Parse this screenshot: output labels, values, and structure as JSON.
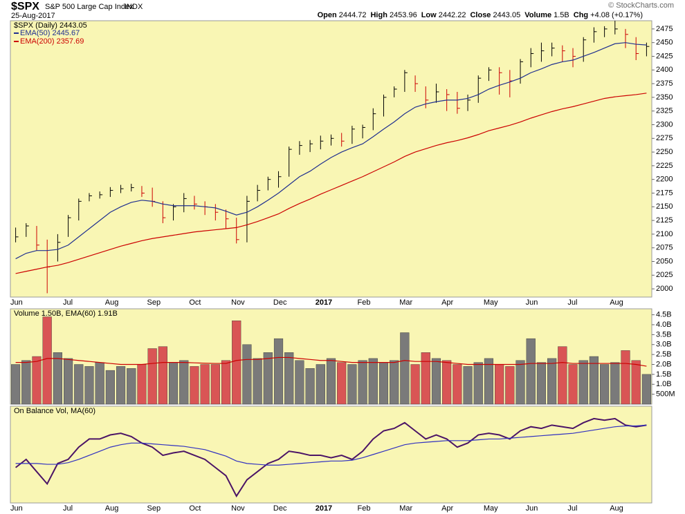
{
  "header": {
    "symbol": "$SPX",
    "name": "S&P 500 Large Cap Index",
    "exchange": "INDX",
    "date": "25-Aug-2017",
    "copyright": "© StockCharts.com",
    "quote": [
      {
        "label": "Open",
        "value": 2444.72
      },
      {
        "label": "High",
        "value": 2453.96
      },
      {
        "label": "Low",
        "value": 2442.22
      },
      {
        "label": "Close",
        "value": 2443.05
      },
      {
        "label": "Volume",
        "value": "1.5B"
      },
      {
        "label": "Chg",
        "value": "+4.08 (+0.17%)"
      }
    ]
  },
  "chart_data": [
    {
      "type": "ohlc",
      "categories": [
        "Jun",
        null,
        null,
        null,
        null,
        "Jul",
        null,
        null,
        null,
        "Aug",
        null,
        null,
        null,
        "Sep",
        null,
        null,
        null,
        "Oct",
        null,
        null,
        null,
        "Nov",
        null,
        null,
        null,
        "Dec",
        null,
        null,
        null,
        "2017",
        null,
        null,
        null,
        "Feb",
        null,
        null,
        null,
        "Mar",
        null,
        null,
        null,
        "Apr",
        null,
        null,
        null,
        "May",
        null,
        null,
        null,
        "Jun",
        null,
        null,
        null,
        "Jul",
        null,
        null,
        null,
        "Aug",
        null,
        null,
        null
      ],
      "ylim": [
        1985,
        2490
      ],
      "yticks": [
        2000,
        2025,
        2050,
        2075,
        2100,
        2125,
        2150,
        2175,
        2200,
        2225,
        2250,
        2275,
        2300,
        2325,
        2350,
        2375,
        2400,
        2425,
        2450,
        2475
      ],
      "up_color": "#000000",
      "down_color": "#cc0000",
      "price": {
        "name": "$SPX (Daily) 2443.05",
        "close": [
          2095,
          2115,
          2080,
          2040,
          2085,
          2130,
          2160,
          2170,
          2172,
          2180,
          2183,
          2185,
          2175,
          2160,
          2130,
          2150,
          2165,
          2155,
          2150,
          2140,
          2128,
          2090,
          2160,
          2180,
          2200,
          2205,
          2255,
          2262,
          2265,
          2270,
          2275,
          2270,
          2292,
          2295,
          2320,
          2350,
          2365,
          2395,
          2375,
          2345,
          2360,
          2355,
          2330,
          2345,
          2385,
          2400,
          2395,
          2380,
          2415,
          2430,
          2435,
          2440,
          2435,
          2425,
          2455,
          2470,
          2475,
          2475,
          2465,
          2430,
          2443
        ],
        "high": [
          2112,
          2120,
          2115,
          2090,
          2100,
          2135,
          2165,
          2175,
          2178,
          2186,
          2190,
          2192,
          2188,
          2185,
          2160,
          2155,
          2175,
          2170,
          2160,
          2155,
          2145,
          2130,
          2170,
          2190,
          2205,
          2215,
          2260,
          2270,
          2272,
          2280,
          2282,
          2285,
          2298,
          2300,
          2330,
          2355,
          2370,
          2400,
          2390,
          2370,
          2375,
          2365,
          2360,
          2355,
          2390,
          2405,
          2405,
          2400,
          2420,
          2440,
          2450,
          2450,
          2445,
          2440,
          2460,
          2478,
          2480,
          2490,
          2475,
          2460,
          2450
        ],
        "low": [
          2085,
          2095,
          2070,
          1992,
          2050,
          2095,
          2125,
          2160,
          2165,
          2168,
          2175,
          2178,
          2168,
          2150,
          2120,
          2125,
          2140,
          2145,
          2135,
          2125,
          2110,
          2083,
          2085,
          2160,
          2180,
          2185,
          2205,
          2245,
          2250,
          2255,
          2262,
          2260,
          2265,
          2275,
          2290,
          2315,
          2350,
          2360,
          2360,
          2330,
          2340,
          2325,
          2320,
          2325,
          2340,
          2380,
          2355,
          2350,
          2375,
          2405,
          2415,
          2425,
          2415,
          2405,
          2415,
          2450,
          2460,
          2465,
          2440,
          2418,
          2425
        ]
      },
      "series": [
        {
          "name": "EMA(50) 2445.67",
          "color": "#1f2f8f",
          "values": [
            2055,
            2065,
            2070,
            2070,
            2072,
            2080,
            2095,
            2110,
            2125,
            2140,
            2150,
            2158,
            2162,
            2160,
            2155,
            2152,
            2152,
            2152,
            2150,
            2148,
            2142,
            2135,
            2140,
            2150,
            2162,
            2175,
            2190,
            2205,
            2215,
            2228,
            2240,
            2250,
            2258,
            2265,
            2278,
            2292,
            2305,
            2320,
            2332,
            2338,
            2342,
            2345,
            2345,
            2348,
            2355,
            2365,
            2372,
            2378,
            2385,
            2395,
            2402,
            2410,
            2415,
            2418,
            2425,
            2432,
            2440,
            2448,
            2450,
            2447,
            2445.67
          ]
        },
        {
          "name": "EMA(200) 2357.69",
          "color": "#cc0000",
          "values": [
            2028,
            2032,
            2036,
            2040,
            2043,
            2048,
            2054,
            2060,
            2066,
            2072,
            2078,
            2083,
            2088,
            2092,
            2095,
            2098,
            2101,
            2104,
            2106,
            2108,
            2110,
            2112,
            2117,
            2123,
            2130,
            2137,
            2147,
            2156,
            2164,
            2173,
            2181,
            2189,
            2197,
            2205,
            2214,
            2223,
            2232,
            2242,
            2250,
            2256,
            2262,
            2267,
            2271,
            2276,
            2282,
            2289,
            2294,
            2299,
            2305,
            2312,
            2318,
            2324,
            2329,
            2333,
            2338,
            2343,
            2348,
            2351,
            2353,
            2355,
            2357.69
          ]
        }
      ]
    },
    {
      "type": "volume",
      "title": "Volume 1.50B, EMA(60) 1.91B",
      "ylim": [
        0,
        4.8
      ],
      "yticks": [
        {
          "value": 0.5,
          "label": "500M"
        },
        {
          "value": 1,
          "label": "1.0B"
        },
        {
          "value": 1.5,
          "label": "1.5B"
        },
        {
          "value": 2,
          "label": "2.0B"
        },
        {
          "value": 2.5,
          "label": "2.5B"
        },
        {
          "value": 3,
          "label": "3.0B"
        },
        {
          "value": 3.5,
          "label": "3.5B"
        },
        {
          "value": 4,
          "label": "4.0B"
        },
        {
          "value": 4.5,
          "label": "4.5B"
        }
      ],
      "up_color": "#7a7a7a",
      "down_color": "#d95555",
      "values": [
        2.0,
        2.2,
        2.4,
        4.4,
        2.6,
        2.3,
        2.0,
        1.9,
        2.1,
        1.7,
        1.9,
        1.8,
        2.0,
        2.8,
        2.9,
        2.1,
        2.2,
        1.9,
        2.0,
        2.0,
        2.2,
        4.2,
        3.0,
        2.3,
        2.6,
        3.3,
        2.6,
        2.2,
        1.8,
        2.0,
        2.3,
        2.1,
        2.0,
        2.2,
        2.3,
        2.1,
        2.2,
        3.6,
        2.0,
        2.6,
        2.3,
        2.2,
        2.0,
        1.9,
        2.1,
        2.3,
        2.0,
        1.9,
        2.2,
        3.3,
        2.1,
        2.3,
        2.9,
        2.0,
        2.2,
        2.4,
        2.0,
        2.1,
        2.7,
        2.2,
        1.5
      ],
      "ema": {
        "color": "#cc0000",
        "values": [
          2.1,
          2.1,
          2.15,
          2.3,
          2.3,
          2.25,
          2.2,
          2.15,
          2.1,
          2.05,
          2.0,
          2.0,
          2.0,
          2.05,
          2.1,
          2.1,
          2.1,
          2.08,
          2.06,
          2.05,
          2.05,
          2.2,
          2.25,
          2.25,
          2.3,
          2.35,
          2.35,
          2.3,
          2.25,
          2.2,
          2.2,
          2.15,
          2.1,
          2.1,
          2.1,
          2.1,
          2.1,
          2.2,
          2.15,
          2.15,
          2.15,
          2.1,
          2.05,
          2.0,
          2.0,
          2.0,
          2.0,
          2.0,
          2.0,
          2.05,
          2.05,
          2.05,
          2.1,
          2.05,
          2.05,
          2.05,
          2.05,
          2.05,
          2.05,
          2.0,
          1.91
        ]
      }
    },
    {
      "type": "line",
      "title": "On Balance Vol, MA(60)",
      "ylim": [
        0,
        105
      ],
      "series": [
        {
          "color": "#4b1466",
          "values": [
            40,
            50,
            35,
            20,
            45,
            50,
            65,
            75,
            75,
            80,
            82,
            78,
            70,
            65,
            55,
            58,
            60,
            55,
            50,
            40,
            30,
            5,
            25,
            35,
            45,
            50,
            60,
            58,
            55,
            55,
            52,
            55,
            50,
            60,
            75,
            85,
            88,
            95,
            85,
            75,
            80,
            75,
            65,
            70,
            80,
            82,
            80,
            75,
            85,
            90,
            88,
            92,
            90,
            88,
            95,
            100,
            98,
            100,
            92,
            90,
            92
          ]
        },
        {
          "color": "#3030c0",
          "values": [
            45,
            45,
            45,
            44,
            44,
            46,
            50,
            55,
            60,
            65,
            68,
            70,
            70,
            69,
            68,
            67,
            66,
            64,
            62,
            58,
            54,
            48,
            45,
            44,
            43,
            43,
            44,
            45,
            46,
            47,
            48,
            48,
            49,
            52,
            56,
            60,
            64,
            68,
            70,
            71,
            72,
            73,
            73,
            73,
            74,
            75,
            75,
            76,
            77,
            78,
            79,
            80,
            81,
            82,
            84,
            86,
            88,
            90,
            91,
            91,
            92
          ]
        }
      ]
    }
  ]
}
